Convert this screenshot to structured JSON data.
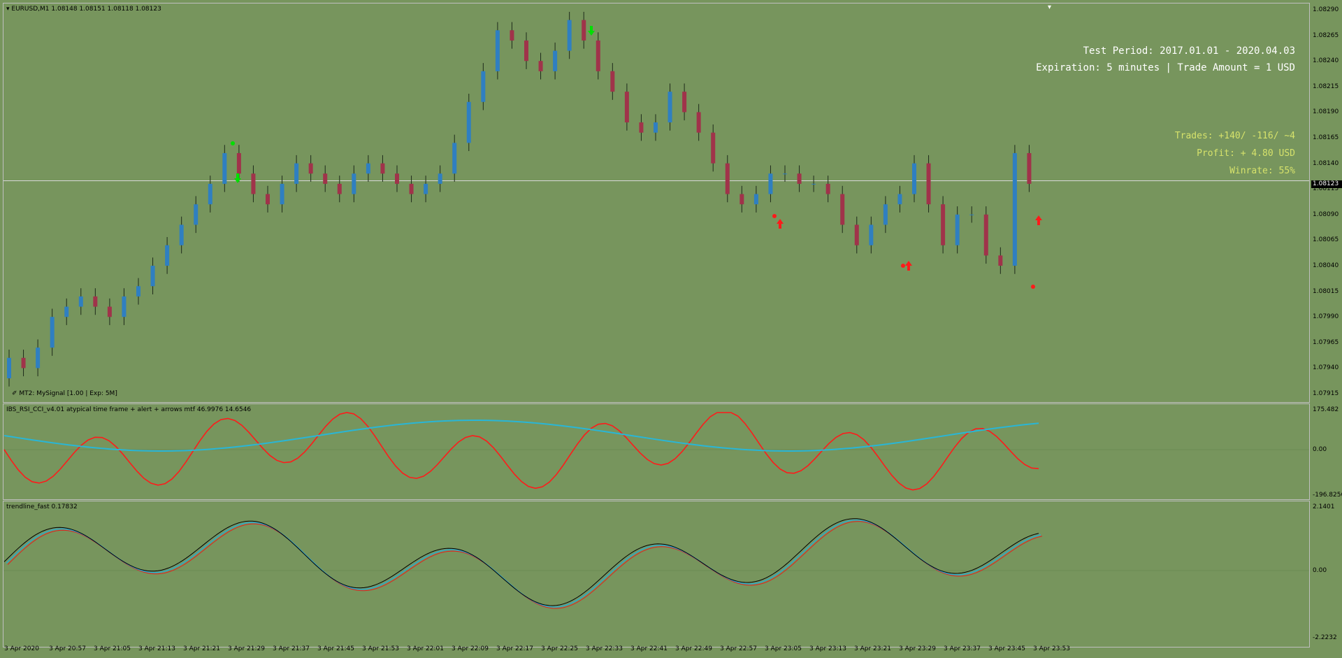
{
  "main_chart": {
    "symbol_header": "EURUSD,M1  1.08148 1.08151 1.08118 1.08123",
    "indicator_label": "MT2: MySignal [1.00 | Exp: 5M]",
    "current_price": "1.08123",
    "price_ticks": [
      "1.08290",
      "1.08265",
      "1.08240",
      "1.08215",
      "1.08190",
      "1.08165",
      "1.08140",
      "1.08115",
      "1.08090",
      "1.08065",
      "1.08040",
      "1.08015",
      "1.07990",
      "1.07965",
      "1.07940",
      "1.07915"
    ],
    "test_period": "Test Period: 2017.01.01 - 2020.04.03",
    "expiration": "Expiration: 5 minutes | Trade Amount = 1 USD",
    "trades": "Trades: +140/ -116/ ~4",
    "profit": "Profit: + 4.80 USD",
    "winrate": "Winrate: 55%",
    "colors": {
      "bull": "#2f7fc1",
      "bear": "#a0334a",
      "background": "#77955d",
      "info_white": "#ffffff",
      "info_green": "#d6e26b"
    }
  },
  "ibs_panel": {
    "label": "IBS_RSI_CCI_v4.01 atypical time frame + alert + arrows mtf 46.9976 14.6546",
    "ticks": [
      "175.482",
      "0.00",
      "-196.8256"
    ]
  },
  "trend_panel": {
    "label": "trendline_fast 0.17832",
    "ticks": [
      "2.1401",
      "0.00",
      "-2.2232"
    ]
  },
  "time_axis": [
    "3 Apr 2020",
    "3 Apr 20:57",
    "3 Apr 21:05",
    "3 Apr 21:13",
    "3 Apr 21:21",
    "3 Apr 21:29",
    "3 Apr 21:37",
    "3 Apr 21:45",
    "3 Apr 21:53",
    "3 Apr 22:01",
    "3 Apr 22:09",
    "3 Apr 22:17",
    "3 Apr 22:25",
    "3 Apr 22:33",
    "3 Apr 22:41",
    "3 Apr 22:49",
    "3 Apr 22:57",
    "3 Apr 23:05",
    "3 Apr 23:13",
    "3 Apr 23:21",
    "3 Apr 23:29",
    "3 Apr 23:37",
    "3 Apr 23:45",
    "3 Apr 23:53"
  ],
  "chart_data": {
    "type": "candlestick",
    "close_series": [
      1.0795,
      1.0794,
      1.0796,
      1.0799,
      1.08,
      1.0801,
      1.08,
      1.0799,
      1.0801,
      1.0802,
      1.0804,
      1.0806,
      1.0808,
      1.081,
      1.0812,
      1.0815,
      1.0813,
      1.0811,
      1.081,
      1.0812,
      1.0814,
      1.0813,
      1.0812,
      1.0811,
      1.0813,
      1.0814,
      1.0813,
      1.0812,
      1.0811,
      1.0812,
      1.0813,
      1.0816,
      1.082,
      1.0823,
      1.0827,
      1.0826,
      1.0824,
      1.0823,
      1.0825,
      1.0828,
      1.0826,
      1.0823,
      1.0821,
      1.0818,
      1.0817,
      1.0818,
      1.0821,
      1.0819,
      1.0817,
      1.0814,
      1.0811,
      1.081,
      1.0811,
      1.0813,
      1.0813,
      1.0812,
      1.0812,
      1.0811,
      1.0808,
      1.0806,
      1.0808,
      1.081,
      1.0811,
      1.0814,
      1.081,
      1.0806,
      1.0809,
      1.0809,
      1.0805,
      1.0804,
      1.0815,
      1.0812
    ]
  }
}
